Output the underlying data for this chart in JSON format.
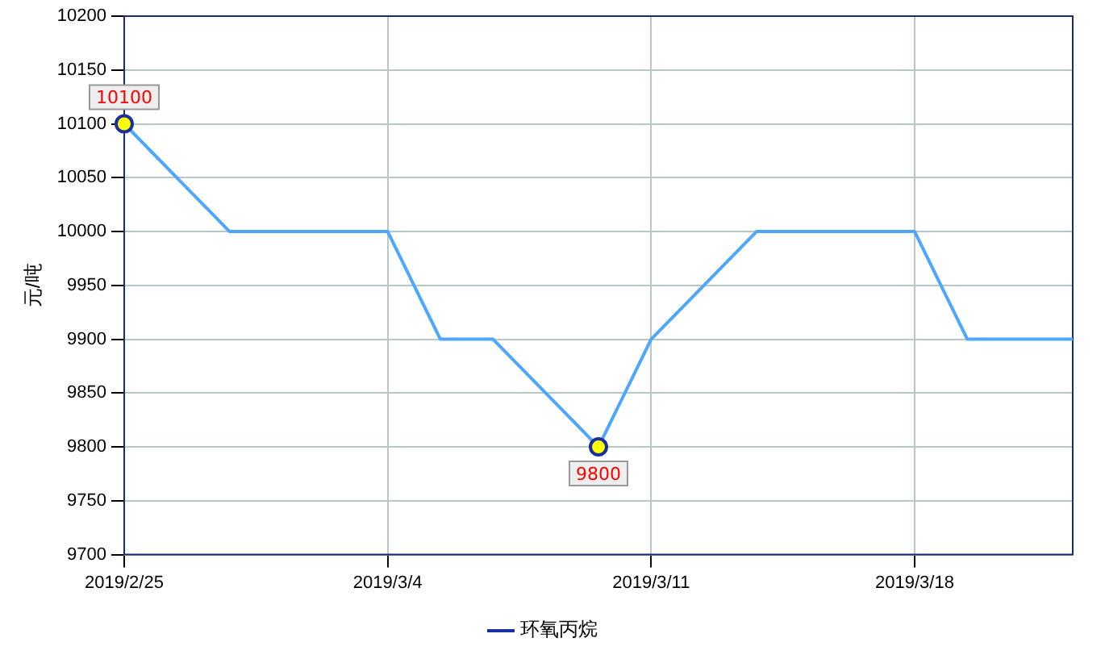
{
  "chart_data": {
    "type": "line",
    "ylabel": "元/吨",
    "categories": [
      "2019/2/25",
      null,
      null,
      null,
      null,
      "2019/3/4",
      null,
      null,
      null,
      null,
      "2019/3/11",
      null,
      null,
      null,
      null,
      "2019/3/18",
      null,
      null,
      null
    ],
    "series": [
      {
        "name": "环氧丙烷",
        "color": "#4da6ff",
        "values": [
          10100,
          10050,
          10000,
          10000,
          10000,
          10000,
          9900,
          9900,
          9850,
          9800,
          9900,
          9950,
          10000,
          10000,
          10000,
          10000,
          9900,
          9900,
          9900
        ],
        "value_labels": [
          "10100",
          null,
          null,
          null,
          null,
          null,
          null,
          null,
          null,
          "9800",
          null,
          null,
          null,
          null,
          null,
          null,
          null,
          null,
          null
        ]
      }
    ],
    "ylim": [
      9700,
      10200
    ],
    "yticks": [
      9700,
      9750,
      9800,
      9850,
      9900,
      9950,
      10000,
      10050,
      10100,
      10150,
      10200
    ],
    "grid": true,
    "legend": "bottom",
    "marker": "none",
    "line_style": "solid"
  }
}
